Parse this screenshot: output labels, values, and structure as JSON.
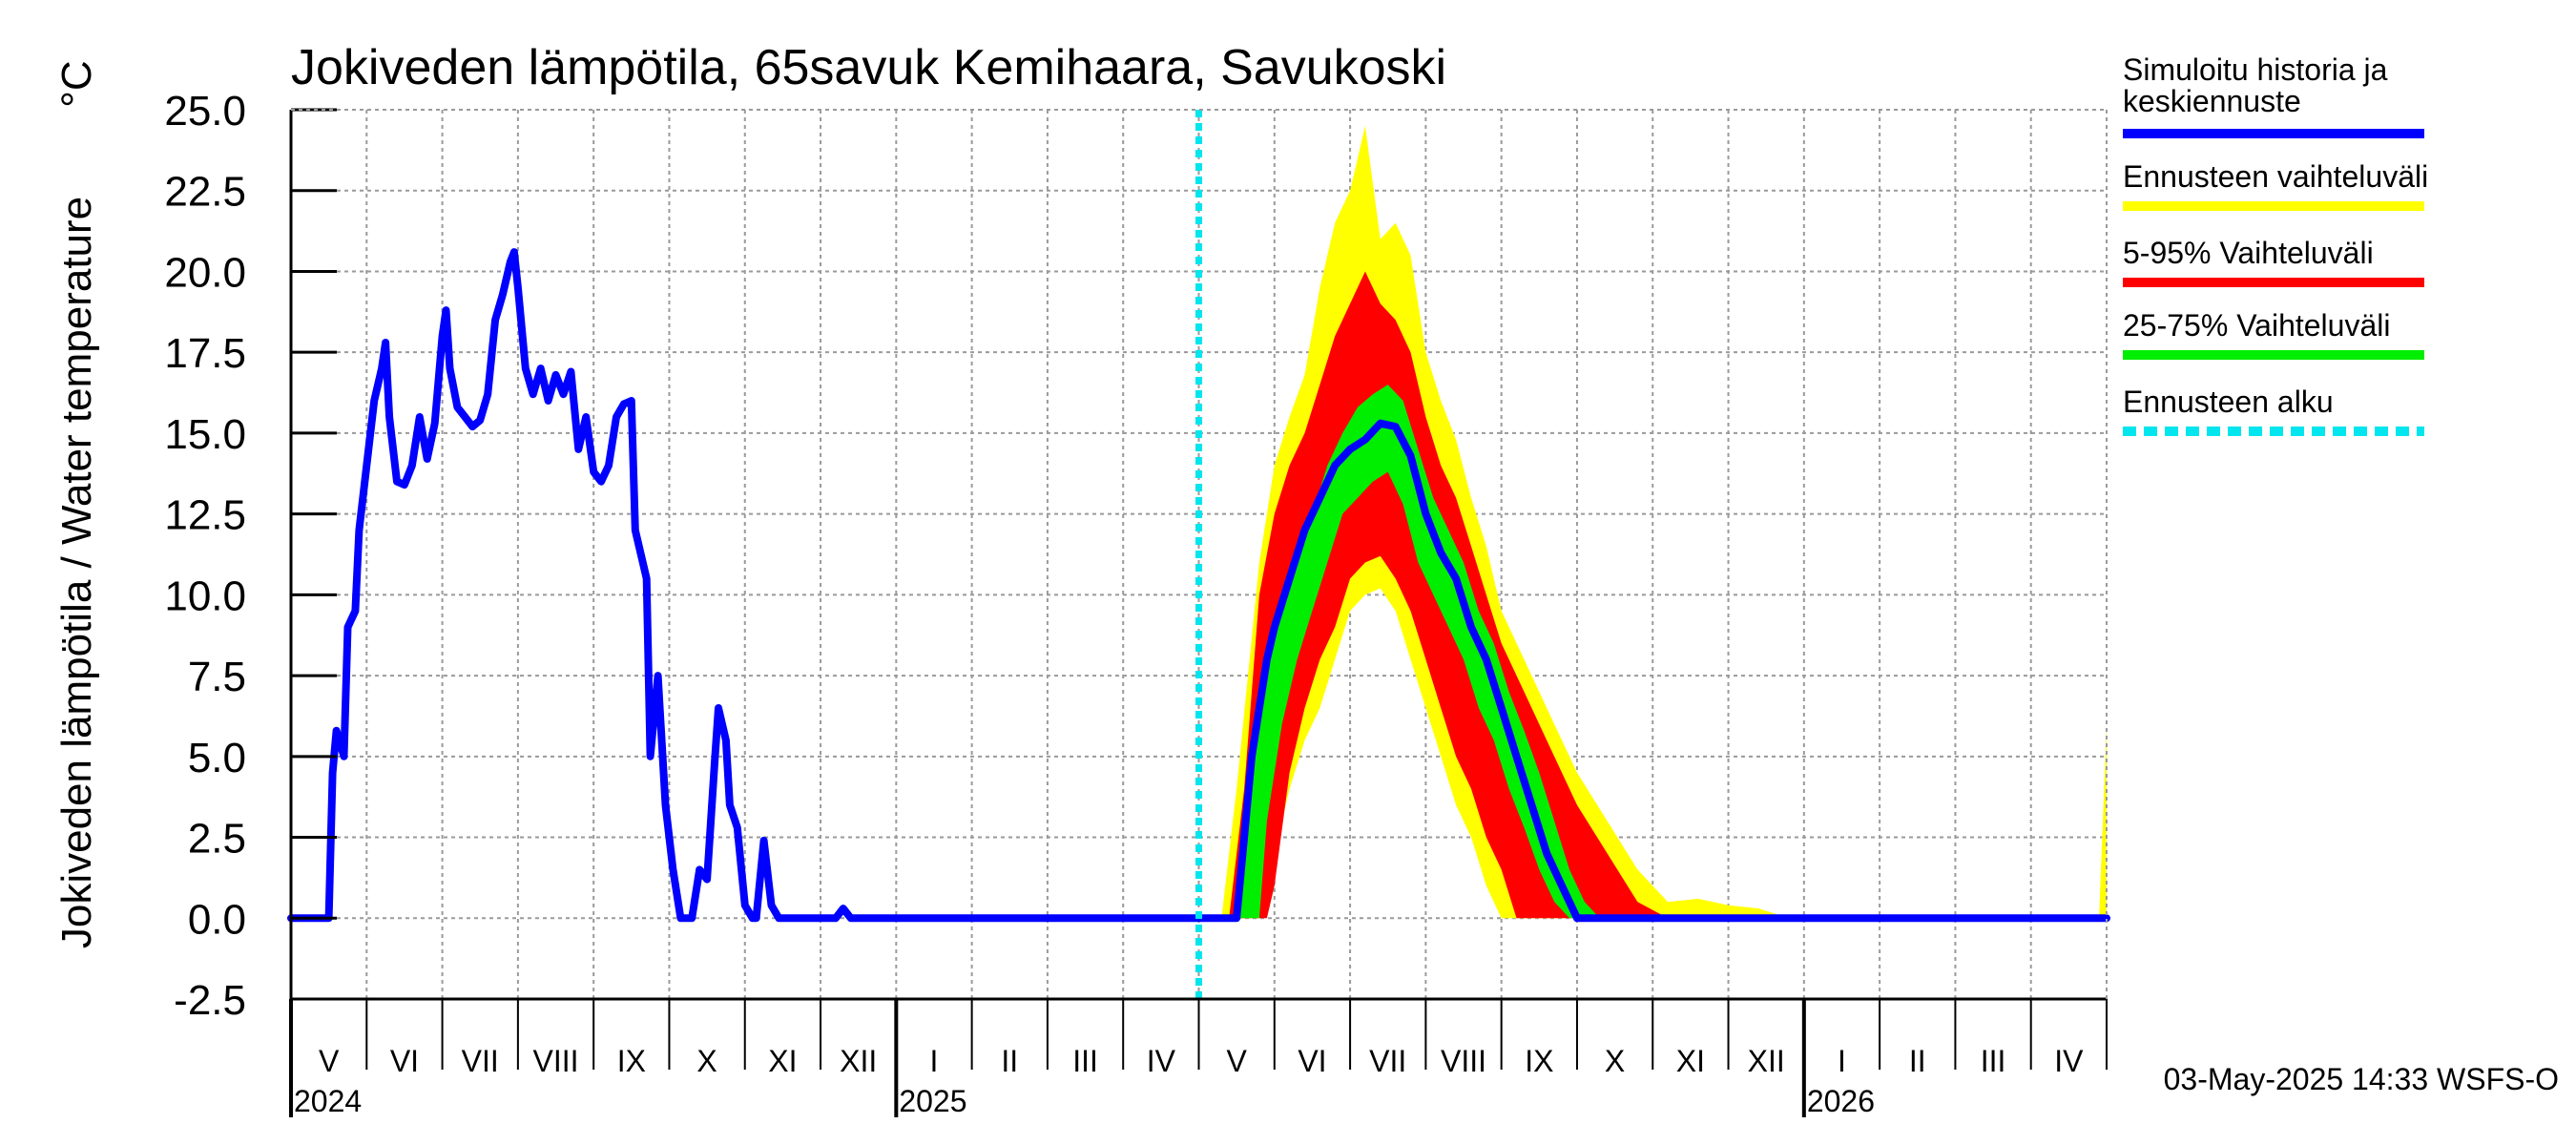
{
  "chart_data": {
    "type": "area",
    "title": "Jokiveden lämpötila, 65savuk Kemihaara, Savukoski",
    "ylabel": "Jokiveden lämpötila / Water temperature",
    "yunit": "°C",
    "ylim": [
      -2.5,
      25
    ],
    "yticks": [
      "25.0",
      "22.5",
      "20.0",
      "17.5",
      "15.0",
      "12.5",
      "10.0",
      "7.5",
      "5.0",
      "2.5",
      "0.0",
      "-2.5"
    ],
    "xlim_months": [
      0,
      24
    ],
    "months": [
      {
        "label": "V",
        "index": 0
      },
      {
        "label": "VI",
        "index": 1
      },
      {
        "label": "VII",
        "index": 2
      },
      {
        "label": "VIII",
        "index": 3
      },
      {
        "label": "IX",
        "index": 4
      },
      {
        "label": "X",
        "index": 5
      },
      {
        "label": "XI",
        "index": 6
      },
      {
        "label": "XII",
        "index": 7
      },
      {
        "label": "I",
        "index": 8
      },
      {
        "label": "II",
        "index": 9
      },
      {
        "label": "III",
        "index": 10
      },
      {
        "label": "IV",
        "index": 11
      },
      {
        "label": "V",
        "index": 12
      },
      {
        "label": "VI",
        "index": 13
      },
      {
        "label": "VII",
        "index": 14
      },
      {
        "label": "VIII",
        "index": 15
      },
      {
        "label": "IX",
        "index": 16
      },
      {
        "label": "X",
        "index": 17
      },
      {
        "label": "XI",
        "index": 18
      },
      {
        "label": "XII",
        "index": 19
      },
      {
        "label": "I",
        "index": 20
      },
      {
        "label": "II",
        "index": 21
      },
      {
        "label": "III",
        "index": 22
      },
      {
        "label": "IV",
        "index": 23
      }
    ],
    "years": [
      {
        "label": "2024",
        "month_index": 0
      },
      {
        "label": "2025",
        "month_index": 8
      },
      {
        "label": "2026",
        "month_index": 20
      }
    ],
    "forecast_start_month": 12.0,
    "series": [
      {
        "name": "Simuloitu historia ja keskiennuste",
        "color": "#0000ff",
        "points": [
          [
            0.0,
            0.0
          ],
          [
            0.5,
            0.0
          ],
          [
            0.55,
            4.5
          ],
          [
            0.6,
            5.8
          ],
          [
            0.7,
            5.0
          ],
          [
            0.75,
            9.0
          ],
          [
            0.85,
            9.5
          ],
          [
            0.9,
            12.0
          ],
          [
            1.0,
            14.0
          ],
          [
            1.1,
            16.0
          ],
          [
            1.2,
            17.0
          ],
          [
            1.25,
            17.8
          ],
          [
            1.3,
            15.5
          ],
          [
            1.4,
            13.5
          ],
          [
            1.5,
            13.4
          ],
          [
            1.6,
            14.0
          ],
          [
            1.7,
            15.5
          ],
          [
            1.8,
            14.2
          ],
          [
            1.9,
            15.3
          ],
          [
            2.0,
            18.0
          ],
          [
            2.05,
            18.8
          ],
          [
            2.1,
            17.0
          ],
          [
            2.2,
            15.8
          ],
          [
            2.3,
            15.5
          ],
          [
            2.4,
            15.2
          ],
          [
            2.5,
            15.4
          ],
          [
            2.6,
            16.2
          ],
          [
            2.7,
            18.5
          ],
          [
            2.8,
            19.3
          ],
          [
            2.9,
            20.3
          ],
          [
            2.95,
            20.6
          ],
          [
            3.0,
            19.5
          ],
          [
            3.1,
            17.0
          ],
          [
            3.2,
            16.2
          ],
          [
            3.3,
            17.0
          ],
          [
            3.4,
            16.0
          ],
          [
            3.5,
            16.8
          ],
          [
            3.6,
            16.2
          ],
          [
            3.7,
            16.9
          ],
          [
            3.8,
            14.5
          ],
          [
            3.9,
            15.5
          ],
          [
            4.0,
            13.8
          ],
          [
            4.1,
            13.5
          ],
          [
            4.2,
            14.0
          ],
          [
            4.3,
            15.5
          ],
          [
            4.4,
            15.9
          ],
          [
            4.5,
            16.0
          ],
          [
            4.55,
            12.0
          ],
          [
            4.7,
            10.5
          ],
          [
            4.75,
            5.0
          ],
          [
            4.85,
            7.5
          ],
          [
            4.95,
            3.5
          ],
          [
            5.05,
            1.5
          ],
          [
            5.15,
            0.0
          ],
          [
            5.3,
            0.0
          ],
          [
            5.4,
            1.5
          ],
          [
            5.5,
            1.2
          ],
          [
            5.6,
            4.8
          ],
          [
            5.65,
            6.5
          ],
          [
            5.75,
            5.5
          ],
          [
            5.8,
            3.5
          ],
          [
            5.9,
            2.8
          ],
          [
            6.0,
            0.4
          ],
          [
            6.1,
            0.0
          ],
          [
            6.15,
            0.0
          ],
          [
            6.25,
            2.4
          ],
          [
            6.35,
            0.4
          ],
          [
            6.45,
            0.0
          ],
          [
            7.0,
            0.0
          ],
          [
            7.2,
            0.0
          ],
          [
            7.3,
            0.3
          ],
          [
            7.4,
            0.0
          ],
          [
            12.5,
            0.0
          ],
          [
            12.6,
            2.5
          ],
          [
            12.7,
            5.0
          ],
          [
            12.8,
            6.5
          ],
          [
            12.9,
            8.0
          ],
          [
            13.0,
            9.0
          ],
          [
            13.2,
            10.5
          ],
          [
            13.4,
            12.0
          ],
          [
            13.6,
            13.0
          ],
          [
            13.8,
            14.0
          ],
          [
            14.0,
            14.5
          ],
          [
            14.2,
            14.8
          ],
          [
            14.4,
            15.3
          ],
          [
            14.6,
            15.2
          ],
          [
            14.8,
            14.3
          ],
          [
            15.0,
            12.5
          ],
          [
            15.2,
            11.3
          ],
          [
            15.4,
            10.5
          ],
          [
            15.6,
            9.0
          ],
          [
            15.8,
            8.0
          ],
          [
            16.0,
            6.5
          ],
          [
            16.2,
            5.0
          ],
          [
            16.4,
            3.5
          ],
          [
            16.6,
            2.0
          ],
          [
            16.8,
            1.0
          ],
          [
            17.0,
            0.0
          ],
          [
            24.0,
            0.0
          ]
        ]
      }
    ],
    "bands": [
      {
        "name": "Ennusteen vaihteluväli",
        "color": "#ffff00",
        "upper": [
          [
            12.3,
            0.0
          ],
          [
            12.5,
            4.0
          ],
          [
            12.8,
            11.0
          ],
          [
            13.0,
            14.0
          ],
          [
            13.2,
            15.5
          ],
          [
            13.4,
            16.8
          ],
          [
            13.6,
            19.5
          ],
          [
            13.8,
            21.5
          ],
          [
            14.0,
            22.5
          ],
          [
            14.2,
            24.5
          ],
          [
            14.4,
            21.0
          ],
          [
            14.6,
            21.5
          ],
          [
            14.8,
            20.5
          ],
          [
            15.0,
            17.5
          ],
          [
            15.2,
            16.0
          ],
          [
            15.4,
            14.8
          ],
          [
            15.6,
            13.0
          ],
          [
            15.8,
            11.5
          ],
          [
            16.0,
            9.5
          ],
          [
            16.3,
            8.0
          ],
          [
            16.6,
            6.5
          ],
          [
            17.0,
            4.5
          ],
          [
            17.4,
            3.0
          ],
          [
            17.8,
            1.5
          ],
          [
            18.2,
            0.5
          ],
          [
            18.6,
            0.6
          ],
          [
            19.0,
            0.4
          ],
          [
            19.4,
            0.3
          ],
          [
            19.8,
            0.0
          ],
          [
            23.9,
            0.0
          ],
          [
            24.0,
            6.0
          ]
        ],
        "lower": [
          [
            12.3,
            0.0
          ],
          [
            12.8,
            0.0
          ],
          [
            13.0,
            2.0
          ],
          [
            13.2,
            4.0
          ],
          [
            13.4,
            5.5
          ],
          [
            13.6,
            6.5
          ],
          [
            13.8,
            8.0
          ],
          [
            14.0,
            9.5
          ],
          [
            14.2,
            10.0
          ],
          [
            14.4,
            10.2
          ],
          [
            14.6,
            9.5
          ],
          [
            14.8,
            8.0
          ],
          [
            15.0,
            6.5
          ],
          [
            15.2,
            5.0
          ],
          [
            15.4,
            3.5
          ],
          [
            15.6,
            2.5
          ],
          [
            15.8,
            1.0
          ],
          [
            16.0,
            0.0
          ],
          [
            24.0,
            0.0
          ]
        ]
      },
      {
        "name": "5-95% Vaihteluväli",
        "color": "#ff0000",
        "upper": [
          [
            12.4,
            0.0
          ],
          [
            12.6,
            4.0
          ],
          [
            12.8,
            10.0
          ],
          [
            13.0,
            12.5
          ],
          [
            13.2,
            14.0
          ],
          [
            13.4,
            15.0
          ],
          [
            13.6,
            16.5
          ],
          [
            13.8,
            18.0
          ],
          [
            14.0,
            19.0
          ],
          [
            14.2,
            20.0
          ],
          [
            14.4,
            19.0
          ],
          [
            14.6,
            18.5
          ],
          [
            14.8,
            17.5
          ],
          [
            15.0,
            15.5
          ],
          [
            15.2,
            14.0
          ],
          [
            15.4,
            13.0
          ],
          [
            15.6,
            11.5
          ],
          [
            15.8,
            10.0
          ],
          [
            16.0,
            8.5
          ],
          [
            16.3,
            7.0
          ],
          [
            16.6,
            5.5
          ],
          [
            17.0,
            3.5
          ],
          [
            17.4,
            2.0
          ],
          [
            17.8,
            0.5
          ],
          [
            18.2,
            0.0
          ],
          [
            24.0,
            0.0
          ]
        ],
        "lower": [
          [
            12.4,
            0.0
          ],
          [
            12.9,
            0.0
          ],
          [
            13.0,
            1.0
          ],
          [
            13.2,
            4.5
          ],
          [
            13.4,
            6.5
          ],
          [
            13.6,
            8.0
          ],
          [
            13.8,
            9.0
          ],
          [
            14.0,
            10.5
          ],
          [
            14.2,
            11.0
          ],
          [
            14.4,
            11.2
          ],
          [
            14.6,
            10.5
          ],
          [
            14.8,
            9.5
          ],
          [
            15.0,
            8.0
          ],
          [
            15.2,
            6.5
          ],
          [
            15.4,
            5.0
          ],
          [
            15.6,
            4.0
          ],
          [
            15.8,
            2.5
          ],
          [
            16.0,
            1.5
          ],
          [
            16.2,
            0.0
          ],
          [
            24.0,
            0.0
          ]
        ]
      },
      {
        "name": "25-75% Vaihteluväli",
        "color": "#00ee00",
        "upper": [
          [
            12.5,
            0.0
          ],
          [
            12.7,
            4.5
          ],
          [
            12.9,
            8.0
          ],
          [
            13.1,
            9.5
          ],
          [
            13.3,
            11.0
          ],
          [
            13.5,
            12.5
          ],
          [
            13.7,
            14.0
          ],
          [
            13.9,
            15.0
          ],
          [
            14.1,
            15.8
          ],
          [
            14.3,
            16.2
          ],
          [
            14.5,
            16.5
          ],
          [
            14.7,
            16.0
          ],
          [
            14.9,
            14.5
          ],
          [
            15.1,
            13.0
          ],
          [
            15.3,
            12.0
          ],
          [
            15.5,
            11.0
          ],
          [
            15.7,
            9.5
          ],
          [
            15.9,
            8.5
          ],
          [
            16.1,
            7.0
          ],
          [
            16.3,
            5.8
          ],
          [
            16.5,
            4.5
          ],
          [
            16.7,
            3.0
          ],
          [
            16.9,
            1.5
          ],
          [
            17.1,
            0.5
          ],
          [
            17.3,
            0.0
          ],
          [
            24.0,
            0.0
          ]
        ],
        "lower": [
          [
            12.5,
            0.0
          ],
          [
            12.8,
            0.0
          ],
          [
            12.9,
            3.0
          ],
          [
            13.1,
            6.0
          ],
          [
            13.3,
            8.0
          ],
          [
            13.5,
            9.5
          ],
          [
            13.7,
            11.0
          ],
          [
            13.9,
            12.5
          ],
          [
            14.1,
            13.0
          ],
          [
            14.3,
            13.5
          ],
          [
            14.5,
            13.8
          ],
          [
            14.7,
            12.8
          ],
          [
            14.9,
            11.0
          ],
          [
            15.1,
            10.0
          ],
          [
            15.3,
            9.0
          ],
          [
            15.5,
            8.0
          ],
          [
            15.7,
            6.5
          ],
          [
            15.9,
            5.5
          ],
          [
            16.1,
            4.0
          ],
          [
            16.3,
            2.8
          ],
          [
            16.5,
            1.5
          ],
          [
            16.7,
            0.5
          ],
          [
            16.9,
            0.0
          ],
          [
            24.0,
            0.0
          ]
        ]
      }
    ],
    "legend": [
      {
        "label_lines": [
          "Simuloitu historia ja",
          "keskiennuste"
        ],
        "color": "#0000ff",
        "style": "solid"
      },
      {
        "label_lines": [
          "Ennusteen vaihteluväli"
        ],
        "color": "#ffff00",
        "style": "solid"
      },
      {
        "label_lines": [
          "5-95% Vaihteluväli"
        ],
        "color": "#ff0000",
        "style": "solid"
      },
      {
        "label_lines": [
          "25-75% Vaihteluväli"
        ],
        "color": "#00ee00",
        "style": "solid"
      },
      {
        "label_lines": [
          "Ennusteen alku"
        ],
        "color": "#00e5ee",
        "style": "dashed"
      }
    ],
    "legend_position": "right",
    "grid": true
  },
  "footer": "03-May-2025 14:33 WSFS-O"
}
